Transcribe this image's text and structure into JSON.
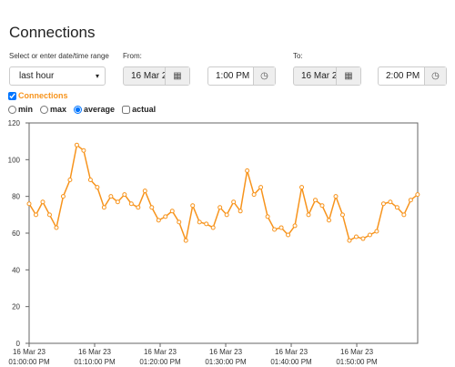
{
  "header": {
    "title": "Connections"
  },
  "form": {
    "range_label": "Select or enter date/time range",
    "range_value": "last hour",
    "from_label": "From:",
    "from_date": "16 Mar 2",
    "from_time": "1:00 PM",
    "to_label": "To:",
    "to_date": "16 Mar 2",
    "to_time": "2:00 PM",
    "series_toggle": "Connections",
    "options": [
      "min",
      "max",
      "average",
      "actual"
    ],
    "selected_option": "average"
  },
  "chart_data": {
    "type": "line",
    "x": [
      0,
      1.04,
      2.08,
      3.12,
      4.16,
      5.2,
      6.24,
      7.28,
      8.32,
      9.36,
      10.4,
      11.44,
      12.48,
      13.52,
      14.56,
      15.6,
      16.64,
      17.68,
      18.72,
      19.76,
      20.8,
      21.84,
      22.88,
      23.92,
      24.96,
      26,
      27.04,
      28.08,
      29.12,
      30.16,
      31.2,
      32.24,
      33.28,
      34.32,
      35.36,
      36.4,
      37.44,
      38.48,
      39.52,
      40.56,
      41.6,
      42.64,
      43.68,
      44.72,
      45.76,
      46.8,
      47.84,
      48.88,
      49.92,
      50.96,
      52,
      53.04,
      54.08,
      55.12,
      56.16,
      57.2,
      58.24,
      59.28
    ],
    "series": [
      {
        "name": "Connections",
        "color": "#f7941d",
        "values": [
          76,
          70,
          77,
          70,
          63,
          80,
          89,
          108,
          105,
          89,
          85,
          74,
          80,
          77,
          81,
          76,
          74,
          83,
          74,
          67,
          69,
          72,
          66,
          56,
          75,
          66,
          65,
          63,
          74,
          70,
          77,
          72,
          94,
          81,
          85,
          69,
          62,
          63,
          59,
          64,
          85,
          70,
          78,
          75,
          67,
          80,
          70,
          56,
          58,
          57,
          59,
          61,
          76,
          77,
          74,
          70,
          78,
          81
        ]
      }
    ],
    "xlim": [
      0,
      59.3
    ],
    "ylim": [
      0,
      120
    ],
    "yticks": [
      0,
      20,
      40,
      60,
      80,
      100,
      120
    ],
    "xticks": [
      {
        "value": 0,
        "label": "01:00:00 PM",
        "date": "16 Mar 23"
      },
      {
        "value": 10,
        "label": "01:10:00 PM",
        "date": "16 Mar 23"
      },
      {
        "value": 20,
        "label": "01:20:00 PM",
        "date": "16 Mar 23"
      },
      {
        "value": 30,
        "label": "01:30:00 PM",
        "date": "16 Mar 23"
      },
      {
        "value": 40,
        "label": "01:40:00 PM",
        "date": "16 Mar 23"
      },
      {
        "value": 50,
        "label": "01:50:00 PM",
        "date": "16 Mar 23"
      }
    ],
    "grid": false
  }
}
